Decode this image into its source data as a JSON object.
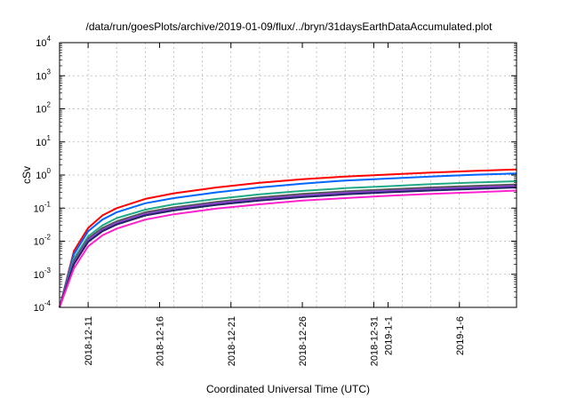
{
  "chart_data": {
    "type": "line",
    "title": "/data/run/goesPlots/archive/2019-01-09/flux/../bryn/31daysEarthDataAccumulated.plot",
    "xlabel": "Coordinated Universal Time (UTC)",
    "ylabel": "cSv",
    "y_scale": "log",
    "ylim": [
      0.0001,
      10000
    ],
    "y_ticks": [
      {
        "base": "10",
        "exp": "-4",
        "value": 0.0001
      },
      {
        "base": "10",
        "exp": "-3",
        "value": 0.001
      },
      {
        "base": "10",
        "exp": "-2",
        "value": 0.01
      },
      {
        "base": "10",
        "exp": "-1",
        "value": 0.1
      },
      {
        "base": "10",
        "exp": "0",
        "value": 1
      },
      {
        "base": "10",
        "exp": "1",
        "value": 10
      },
      {
        "base": "10",
        "exp": "2",
        "value": 100
      },
      {
        "base": "10",
        "exp": "3",
        "value": 1000
      },
      {
        "base": "10",
        "exp": "4",
        "value": 10000
      }
    ],
    "xlim": [
      "2018-12-09",
      "2019-01-10"
    ],
    "x_ticks": [
      {
        "label": "2018-12-11",
        "date": "2018-12-11"
      },
      {
        "label": "2018-12-16",
        "date": "2018-12-16"
      },
      {
        "label": "2018-12-21",
        "date": "2018-12-21"
      },
      {
        "label": "2018-12-26",
        "date": "2018-12-26"
      },
      {
        "label": "2018-12-31",
        "date": "2018-12-31"
      },
      {
        "label": "2019-1-1",
        "date": "2019-01-01"
      },
      {
        "label": "2019-1-6",
        "date": "2019-01-06"
      }
    ],
    "grid": true,
    "x": [
      "2018-12-09",
      "2018-12-10",
      "2018-12-11",
      "2018-12-12",
      "2018-12-13",
      "2018-12-15",
      "2018-12-17",
      "2018-12-20",
      "2018-12-23",
      "2018-12-26",
      "2018-12-29",
      "2019-01-01",
      "2019-01-04",
      "2019-01-07",
      "2019-01-10"
    ],
    "series": [
      {
        "color": "#ff0000",
        "values": [
          0.0001,
          0.005,
          0.025,
          0.06,
          0.1,
          0.19,
          0.28,
          0.42,
          0.58,
          0.75,
          0.9,
          1.03,
          1.18,
          1.33,
          1.48
        ]
      },
      {
        "color": "#0066ff",
        "values": [
          0.0001,
          0.004,
          0.02,
          0.045,
          0.075,
          0.14,
          0.2,
          0.3,
          0.42,
          0.55,
          0.68,
          0.78,
          0.9,
          1.02,
          1.12
        ]
      },
      {
        "color": "#22aa88",
        "values": [
          0.0001,
          0.003,
          0.014,
          0.03,
          0.05,
          0.09,
          0.13,
          0.19,
          0.26,
          0.33,
          0.4,
          0.46,
          0.53,
          0.59,
          0.65
        ]
      },
      {
        "color": "#555555",
        "values": [
          0.0001,
          0.0025,
          0.012,
          0.025,
          0.04,
          0.075,
          0.105,
          0.155,
          0.21,
          0.27,
          0.32,
          0.37,
          0.42,
          0.47,
          0.52
        ]
      },
      {
        "color": "#8844cc",
        "values": [
          0.0001,
          0.0022,
          0.011,
          0.022,
          0.036,
          0.067,
          0.095,
          0.14,
          0.19,
          0.24,
          0.29,
          0.33,
          0.38,
          0.42,
          0.47
        ]
      },
      {
        "color": "#222266",
        "values": [
          0.0001,
          0.002,
          0.0095,
          0.02,
          0.032,
          0.06,
          0.085,
          0.125,
          0.17,
          0.215,
          0.26,
          0.3,
          0.34,
          0.38,
          0.42
        ]
      },
      {
        "color": "#ff22cc",
        "values": [
          0.0001,
          0.0015,
          0.007,
          0.015,
          0.024,
          0.045,
          0.065,
          0.097,
          0.13,
          0.17,
          0.2,
          0.235,
          0.27,
          0.3,
          0.34
        ]
      }
    ]
  }
}
